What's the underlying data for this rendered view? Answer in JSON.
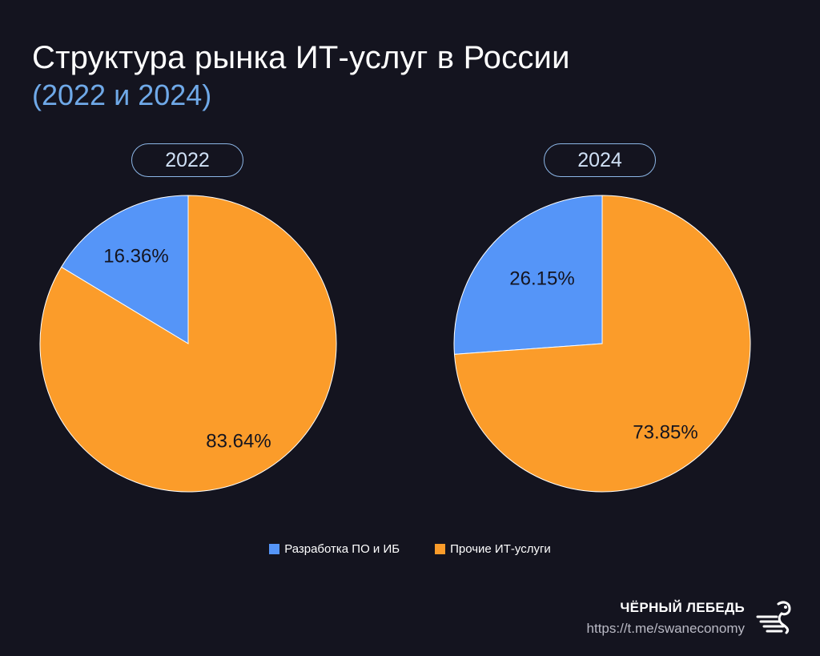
{
  "header": {
    "title": "Структура рынка ИТ-услуг в России",
    "subtitle": "(2022 и 2024)"
  },
  "colors": {
    "background": "#14141f",
    "series_dev": "#5595f8",
    "series_other": "#fb9c2a",
    "accent_blue": "#6fa9e8"
  },
  "chart_data": [
    {
      "type": "pie",
      "title": "2022",
      "categories": [
        "Разработка ПО и ИБ",
        "Прочие ИТ-услуги"
      ],
      "values": [
        16.36,
        83.64
      ],
      "labels": [
        "16.36%",
        "83.64%"
      ]
    },
    {
      "type": "pie",
      "title": "2024",
      "categories": [
        "Разработка ПО и ИБ",
        "Прочие ИТ-услуги"
      ],
      "values": [
        26.15,
        73.85
      ],
      "labels": [
        "26.15%",
        "73.85%"
      ]
    }
  ],
  "legend": {
    "placement": "bottom-center",
    "items": [
      {
        "label": "Разработка ПО и ИБ",
        "color": "#5595f8"
      },
      {
        "label": "Прочие ИТ-услуги",
        "color": "#fb9c2a"
      }
    ]
  },
  "footer": {
    "brand_name": "ЧЁРНЫЙ ЛЕБЕДЬ",
    "brand_url": "https://t.me/swaneconomy",
    "logo_icon": "swan-logo-icon"
  }
}
